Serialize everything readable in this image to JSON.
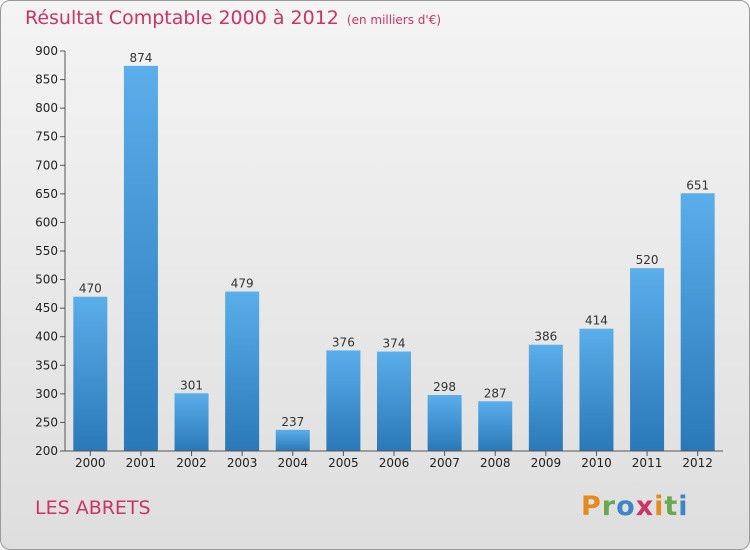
{
  "chart_data": {
    "type": "bar",
    "title": "Résultat Comptable 2000 à 2012",
    "subtitle": "(en milliers d'€)",
    "categories": [
      "2000",
      "2001",
      "2002",
      "2003",
      "2004",
      "2005",
      "2006",
      "2007",
      "2008",
      "2009",
      "2010",
      "2011",
      "2012"
    ],
    "values": [
      470,
      874,
      301,
      479,
      237,
      376,
      374,
      298,
      287,
      386,
      414,
      520,
      651
    ],
    "ylim": [
      200,
      900
    ],
    "yticks": [
      200,
      250,
      300,
      350,
      400,
      450,
      500,
      550,
      600,
      650,
      700,
      750,
      800,
      850,
      900
    ],
    "grid": false,
    "xlabel": "",
    "ylabel": "",
    "bar_color": "#3d95d6"
  },
  "place_name": "LES ABRETS",
  "logo": {
    "letters": [
      {
        "char": "P",
        "color": "#e58a1c"
      },
      {
        "char": "r",
        "color": "#6aa84f"
      },
      {
        "char": "o",
        "color": "#3d85c6"
      },
      {
        "char": "x",
        "color": "#cc3366"
      },
      {
        "char": "i",
        "color": "#e58a1c"
      },
      {
        "char": "t",
        "color": "#6aa84f"
      },
      {
        "char": "i",
        "color": "#3d85c6"
      }
    ]
  }
}
